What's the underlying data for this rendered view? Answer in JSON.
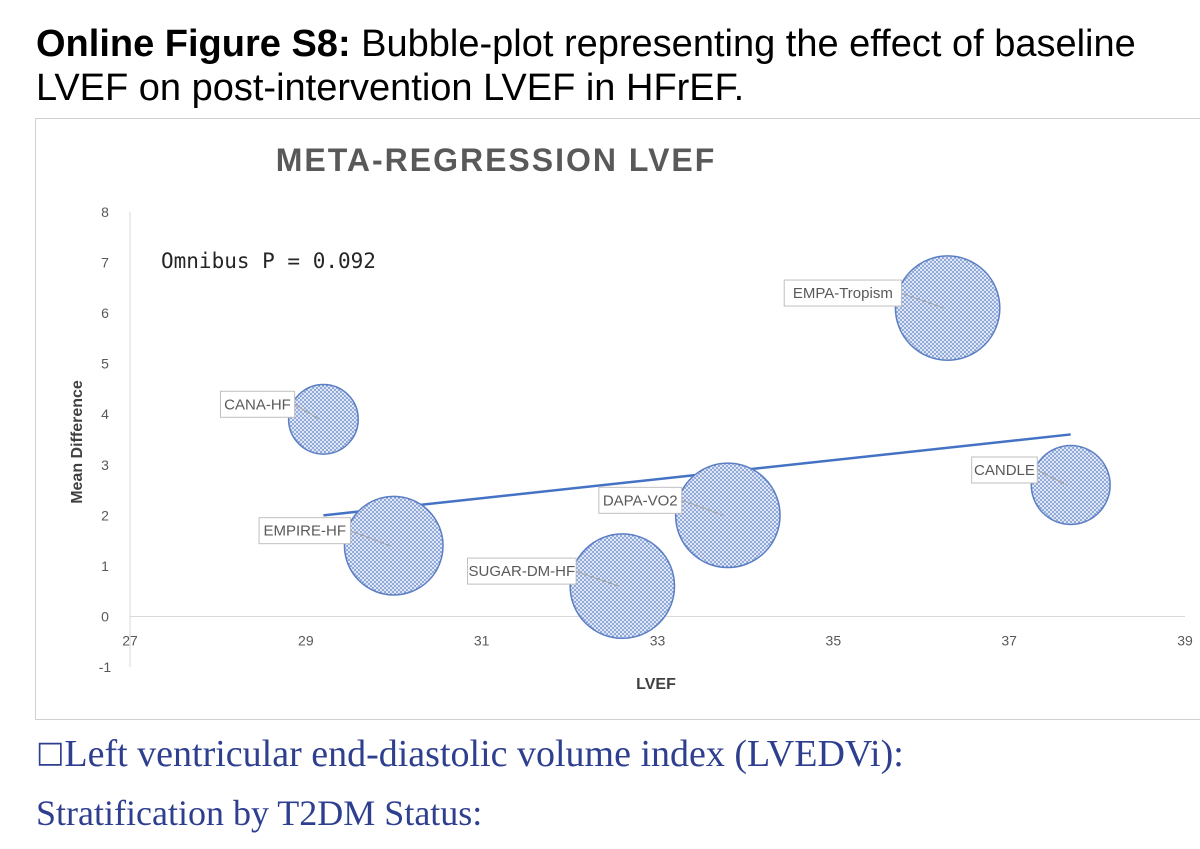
{
  "caption": {
    "label": "Online Figure S8:",
    "text": " Bubble-plot representing the effect of baseline LVEF on post-intervention LVEF in HFrEF."
  },
  "chart_data": {
    "type": "scatter",
    "title": "META-REGRESSION LVEF",
    "xlabel": "LVEF",
    "ylabel": "Mean Difference",
    "xlim": [
      27,
      39
    ],
    "ylim": [
      -1,
      8
    ],
    "x_ticks": [
      "27",
      "29",
      "31",
      "33",
      "35",
      "37",
      "39"
    ],
    "y_ticks": [
      "-1",
      "0",
      "1",
      "2",
      "3",
      "4",
      "5",
      "6",
      "7",
      "8"
    ],
    "annotation": "Omnibus P = 0.092",
    "grid": false,
    "legend": "none",
    "bubble_color": "#5b7fc4",
    "line_color": "#4472c4",
    "points": [
      {
        "label": "CANA-HF",
        "x": 29.2,
        "y": 3.9,
        "size": 0.6
      },
      {
        "label": "EMPIRE-HF",
        "x": 30.0,
        "y": 1.4,
        "size": 0.85
      },
      {
        "label": "SUGAR-DM-HF",
        "x": 32.6,
        "y": 0.6,
        "size": 0.9
      },
      {
        "label": "DAPA-VO2",
        "x": 33.8,
        "y": 2.0,
        "size": 0.9
      },
      {
        "label": "EMPA-Tropism",
        "x": 36.3,
        "y": 6.1,
        "size": 0.9
      },
      {
        "label": "CANDLE",
        "x": 37.7,
        "y": 2.6,
        "size": 0.68
      }
    ],
    "regression_line": {
      "x": [
        29.2,
        37.7
      ],
      "y": [
        2.0,
        3.6
      ]
    }
  },
  "footer": {
    "box_glyph": "□",
    "heading": "Left ventricular end-diastolic volume index (LVEDVi):",
    "subheading": "Stratification by T2DM Status:"
  }
}
